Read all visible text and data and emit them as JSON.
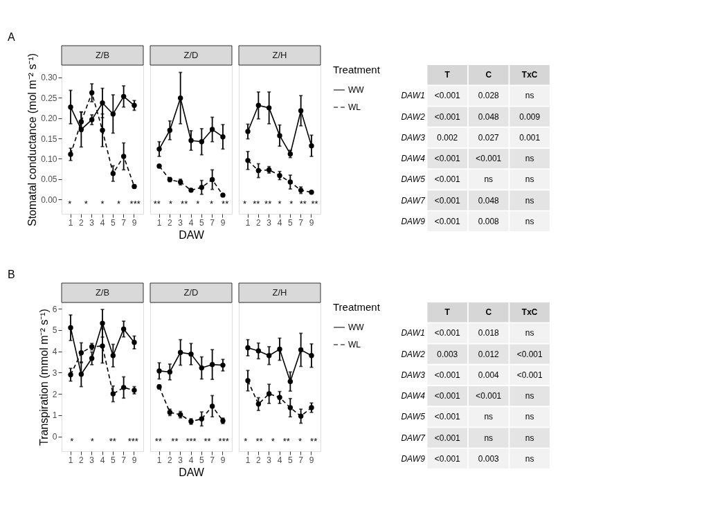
{
  "chart_data": [
    {
      "type": "line",
      "title": "Z/B",
      "ylabel": "Stomatal conductance (mol m⁻² s⁻¹)",
      "categories": [
        "1",
        "2",
        "3",
        "4",
        "5",
        "7",
        "9"
      ],
      "ylim": [
        -0.035,
        0.33
      ],
      "yticks": [
        {
          "value": 0,
          "label": "0.00"
        },
        {
          "value": 0.05,
          "label": "0.05"
        },
        {
          "value": 0.1,
          "label": "0.10"
        },
        {
          "value": 0.15,
          "label": "0.15"
        },
        {
          "value": 0.2,
          "label": "0.20"
        },
        {
          "value": 0.25,
          "label": "0.25"
        },
        {
          "value": 0.3,
          "label": "0.30"
        }
      ],
      "grid": false,
      "marker": "circle",
      "series": [
        {
          "color": "#000000",
          "line_style": "solid",
          "values": [
            0.227,
            0.172,
            0.196,
            0.237,
            0.21,
            0.253,
            0.231
          ],
          "errors": [
            0.041,
            0.043,
            0.012,
            0.036,
            0.047,
            0.026,
            0.012
          ]
        },
        {
          "color": "#000000",
          "line_style": "dashed",
          "values": [
            0.111,
            0.191,
            0.262,
            0.17,
            0.064,
            0.106,
            0.032
          ],
          "errors": [
            0.015,
            0.024,
            0.022,
            0.04,
            0.019,
            0.033,
            0.004
          ]
        }
      ],
      "annotations": [
        "A",
        "*",
        "*",
        "*",
        "*",
        "***"
      ]
    },
    {
      "type": "line",
      "title": "Z/D",
      "xlabel": "DAW",
      "categories": [
        "1",
        "2",
        "3",
        "4",
        "5",
        "7",
        "9"
      ],
      "ylim": [
        -0.035,
        0.33
      ],
      "tick_labels": "x",
      "grid": false,
      "marker": "circle",
      "series": [
        {
          "color": "#000000",
          "line_style": "solid",
          "values": [
            0.124,
            0.17,
            0.249,
            0.145,
            0.142,
            0.172,
            0.154
          ],
          "errors": [
            0.018,
            0.023,
            0.063,
            0.024,
            0.032,
            0.03,
            0.03
          ]
        },
        {
          "color": "#000000",
          "line_style": "dashed",
          "values": [
            0.082,
            0.049,
            0.043,
            0.023,
            0.03,
            0.049,
            0.011
          ],
          "errors": [
            0.004,
            0.005,
            0.007,
            0.004,
            0.017,
            0.024,
            0.002
          ]
        }
      ],
      "annotations": [
        "**",
        "*",
        "**",
        "*",
        "*",
        "**"
      ]
    },
    {
      "type": "line",
      "title": "Z/H",
      "categories": [
        "1",
        "2",
        "3",
        "4",
        "5",
        "7",
        "9"
      ],
      "ylim": [
        -0.035,
        0.33
      ],
      "tick_labels": "x",
      "grid": false,
      "marker": "circle",
      "legend": "right",
      "legend_title": "Treatment",
      "series": [
        {
          "name": "WW",
          "color": "#000000",
          "line_style": "solid",
          "values": [
            0.167,
            0.231,
            0.225,
            0.157,
            0.112,
            0.218,
            0.132
          ],
          "errors": [
            0.018,
            0.033,
            0.039,
            0.026,
            0.009,
            0.037,
            0.026
          ]
        },
        {
          "name": "WL",
          "color": "#000000",
          "line_style": "dashed",
          "values": [
            0.096,
            0.071,
            0.073,
            0.059,
            0.043,
            0.023,
            0.018
          ],
          "errors": [
            0.022,
            0.017,
            0.008,
            0.01,
            0.017,
            0.008,
            0.002
          ]
        }
      ],
      "annotations": [
        "*",
        "**",
        "**",
        "*",
        "*",
        "**",
        "**"
      ]
    },
    {
      "type": "other",
      "categories": [
        "T",
        "C",
        "TxC"
      ],
      "y_categories": [
        "DAW1",
        "DAW2",
        "DAW3",
        "DAW4",
        "DAW5",
        "DAW7",
        "DAW9"
      ],
      "cell_labels": [
        [
          "<0.001",
          "0.028",
          "ns"
        ],
        [
          "<0.001",
          "0.048",
          "0.009"
        ],
        [
          "0.002",
          "0.027",
          "0.001"
        ],
        [
          "<0.001",
          "<0.001",
          "ns"
        ],
        [
          "<0.001",
          "ns",
          "ns"
        ],
        [
          "<0.001",
          "0.048",
          "ns"
        ],
        [
          "<0.001",
          "0.008",
          "ns"
        ]
      ]
    },
    {
      "type": "line",
      "title": "Z/B",
      "ylabel": "Transpiration (mmol m⁻² s⁻¹)",
      "categories": [
        "1",
        "2",
        "3",
        "4",
        "5",
        "7",
        "9"
      ],
      "ylim": [
        -0.7,
        6.3
      ],
      "yticks": [
        0,
        1,
        2,
        3,
        4,
        5,
        6
      ],
      "grid": false,
      "marker": "circle",
      "series": [
        {
          "color": "#000000",
          "line_style": "solid",
          "values": [
            5.11,
            2.92,
            3.67,
            5.32,
            3.8,
            5.05,
            4.42
          ],
          "errors": [
            0.6,
            0.58,
            0.3,
            0.65,
            0.53,
            0.37,
            0.3
          ]
        },
        {
          "color": "#000000",
          "line_style": "dashed",
          "values": [
            2.9,
            3.93,
            4.22,
            4.25,
            2.0,
            2.3,
            2.17
          ],
          "errors": [
            0.3,
            0.47,
            0.15,
            0.8,
            0.37,
            0.5,
            0.17
          ]
        }
      ],
      "annotations": [
        "B",
        "*",
        "*",
        "**",
        "***"
      ]
    },
    {
      "type": "line",
      "title": "Z/D",
      "xlabel": "DAW",
      "categories": [
        "1",
        "2",
        "3",
        "4",
        "5",
        "7",
        "9"
      ],
      "ylim": [
        -0.7,
        6.3
      ],
      "tick_labels": "x",
      "grid": false,
      "marker": "circle",
      "series": [
        {
          "color": "#000000",
          "line_style": "solid",
          "values": [
            3.08,
            3.03,
            3.95,
            3.87,
            3.22,
            3.38,
            3.35
          ],
          "errors": [
            0.38,
            0.37,
            0.6,
            0.5,
            0.52,
            0.7,
            0.27
          ]
        },
        {
          "color": "#000000",
          "line_style": "dashed",
          "values": [
            2.33,
            1.13,
            1.02,
            0.7,
            0.82,
            1.42,
            0.73
          ],
          "errors": [
            0.1,
            0.15,
            0.15,
            0.13,
            0.33,
            0.5,
            0.13
          ]
        }
      ],
      "annotations": [
        "**",
        "**",
        "***",
        "**",
        "***"
      ]
    },
    {
      "type": "line",
      "title": "Z/H",
      "categories": [
        "1",
        "2",
        "3",
        "4",
        "5",
        "7",
        "9"
      ],
      "ylim": [
        -0.7,
        6.3
      ],
      "tick_labels": "x",
      "grid": false,
      "marker": "circle",
      "legend": "right",
      "legend_title": "Treatment",
      "series": [
        {
          "name": "WW",
          "color": "#000000",
          "line_style": "solid",
          "values": [
            4.17,
            4.02,
            3.8,
            4.1,
            2.58,
            4.07,
            3.8
          ],
          "errors": [
            0.38,
            0.37,
            0.42,
            0.52,
            0.45,
            0.78,
            0.55
          ]
        },
        {
          "name": "WL",
          "color": "#000000",
          "line_style": "dashed",
          "values": [
            2.62,
            1.52,
            2.0,
            1.83,
            1.35,
            0.95,
            1.35
          ],
          "errors": [
            0.48,
            0.3,
            0.45,
            0.28,
            0.43,
            0.33,
            0.22
          ]
        }
      ],
      "annotations": [
        "*",
        "**",
        "*",
        "**",
        "*",
        "**"
      ]
    },
    {
      "type": "other",
      "categories": [
        "T",
        "C",
        "TxC"
      ],
      "y_categories": [
        "DAW1",
        "DAW2",
        "DAW3",
        "DAW4",
        "DAW5",
        "DAW7",
        "DAW9"
      ],
      "cell_labels": [
        [
          "<0.001",
          "0.018",
          "ns"
        ],
        [
          "0.003",
          "0.012",
          "<0.001"
        ],
        [
          "<0.001",
          "0.004",
          "<0.001"
        ],
        [
          "<0.001",
          "<0.001",
          "ns"
        ],
        [
          "<0.001",
          "ns",
          "ns"
        ],
        [
          "<0.001",
          "ns",
          "ns"
        ],
        [
          "<0.001",
          "0.003",
          "ns"
        ]
      ]
    }
  ]
}
